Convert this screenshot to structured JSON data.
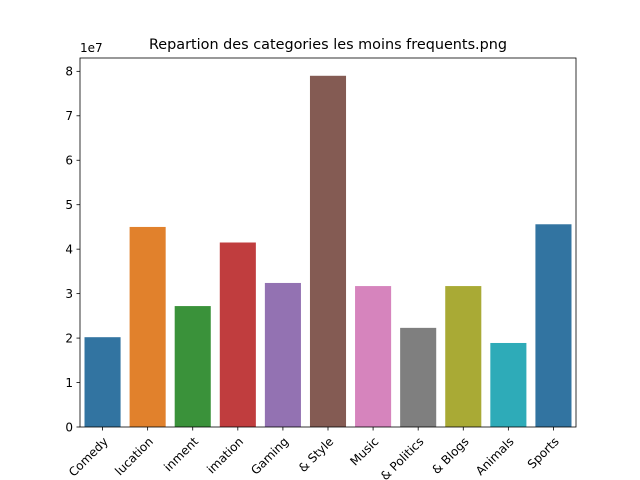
{
  "chart_data": {
    "type": "bar",
    "title": "Repartion des categories les moins frequents.png",
    "xlabel": "",
    "ylabel": "",
    "y_exponent_label": "1e7",
    "ylim": [
      0,
      83000000
    ],
    "yticks": [
      0,
      10000000,
      20000000,
      30000000,
      40000000,
      50000000,
      60000000,
      70000000,
      80000000
    ],
    "ytick_labels": [
      "0",
      "1",
      "2",
      "3",
      "4",
      "5",
      "6",
      "7",
      "8"
    ],
    "categories": [
      "Comedy",
      "lucation",
      "inment",
      "imation",
      "Gaming",
      "& Style",
      "Music",
      "& Politics",
      "& Blogs",
      "Animals",
      "Sports"
    ],
    "values": [
      20200000,
      45000000,
      27200000,
      41500000,
      32400000,
      79000000,
      31700000,
      22300000,
      31700000,
      18900000,
      45600000
    ],
    "colors": [
      "#3274a1",
      "#e1812c",
      "#3a923a",
      "#c03d3e",
      "#9372b2",
      "#845b53",
      "#d684bd",
      "#7f7f7f",
      "#a9aa35",
      "#2eabb8",
      "#3274a1"
    ],
    "grid": false,
    "legend": "none"
  }
}
